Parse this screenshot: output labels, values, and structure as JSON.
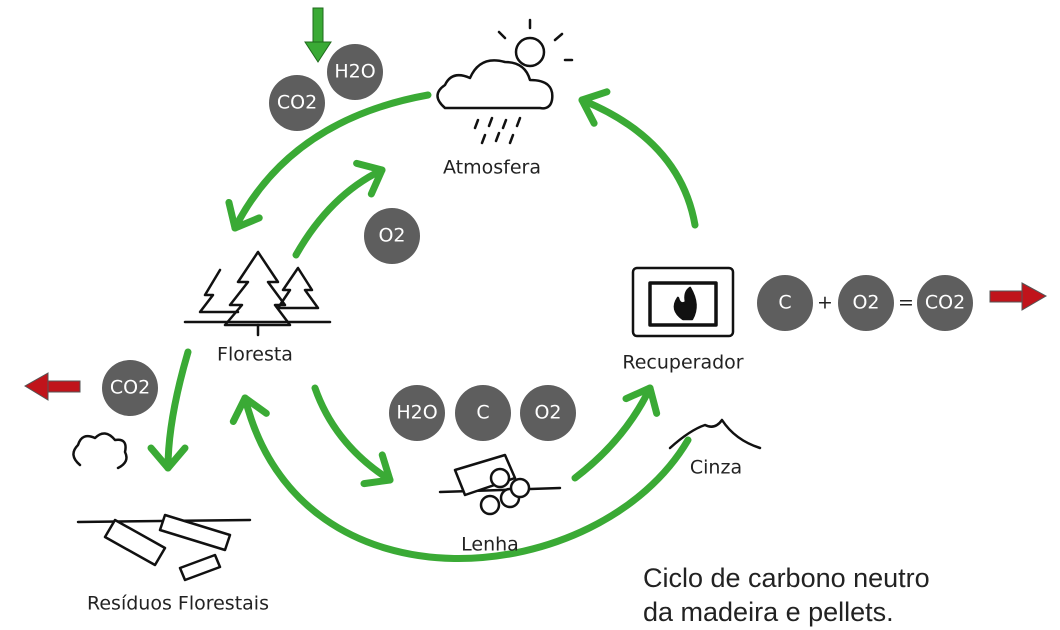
{
  "nodes": [
    {
      "label": "Atmosfera"
    },
    {
      "label": "Floresta"
    },
    {
      "label": "Recuperador"
    },
    {
      "label": "Lenha"
    },
    {
      "label": "Cinza"
    },
    {
      "label": "Resíduos Florestais"
    }
  ],
  "molecules": {
    "atmosphere_in": [
      "CO2",
      "H2O"
    ],
    "forest_out": [
      "O2"
    ],
    "firewood": [
      "H2O",
      "C",
      "O2"
    ],
    "residues_out": [
      "CO2"
    ]
  },
  "equation": {
    "terms": [
      "C",
      "O2",
      "CO2"
    ],
    "operators": [
      "+",
      "="
    ]
  },
  "caption": [
    "Ciclo de carbono neutro",
    "da madeira e pellets."
  ]
}
